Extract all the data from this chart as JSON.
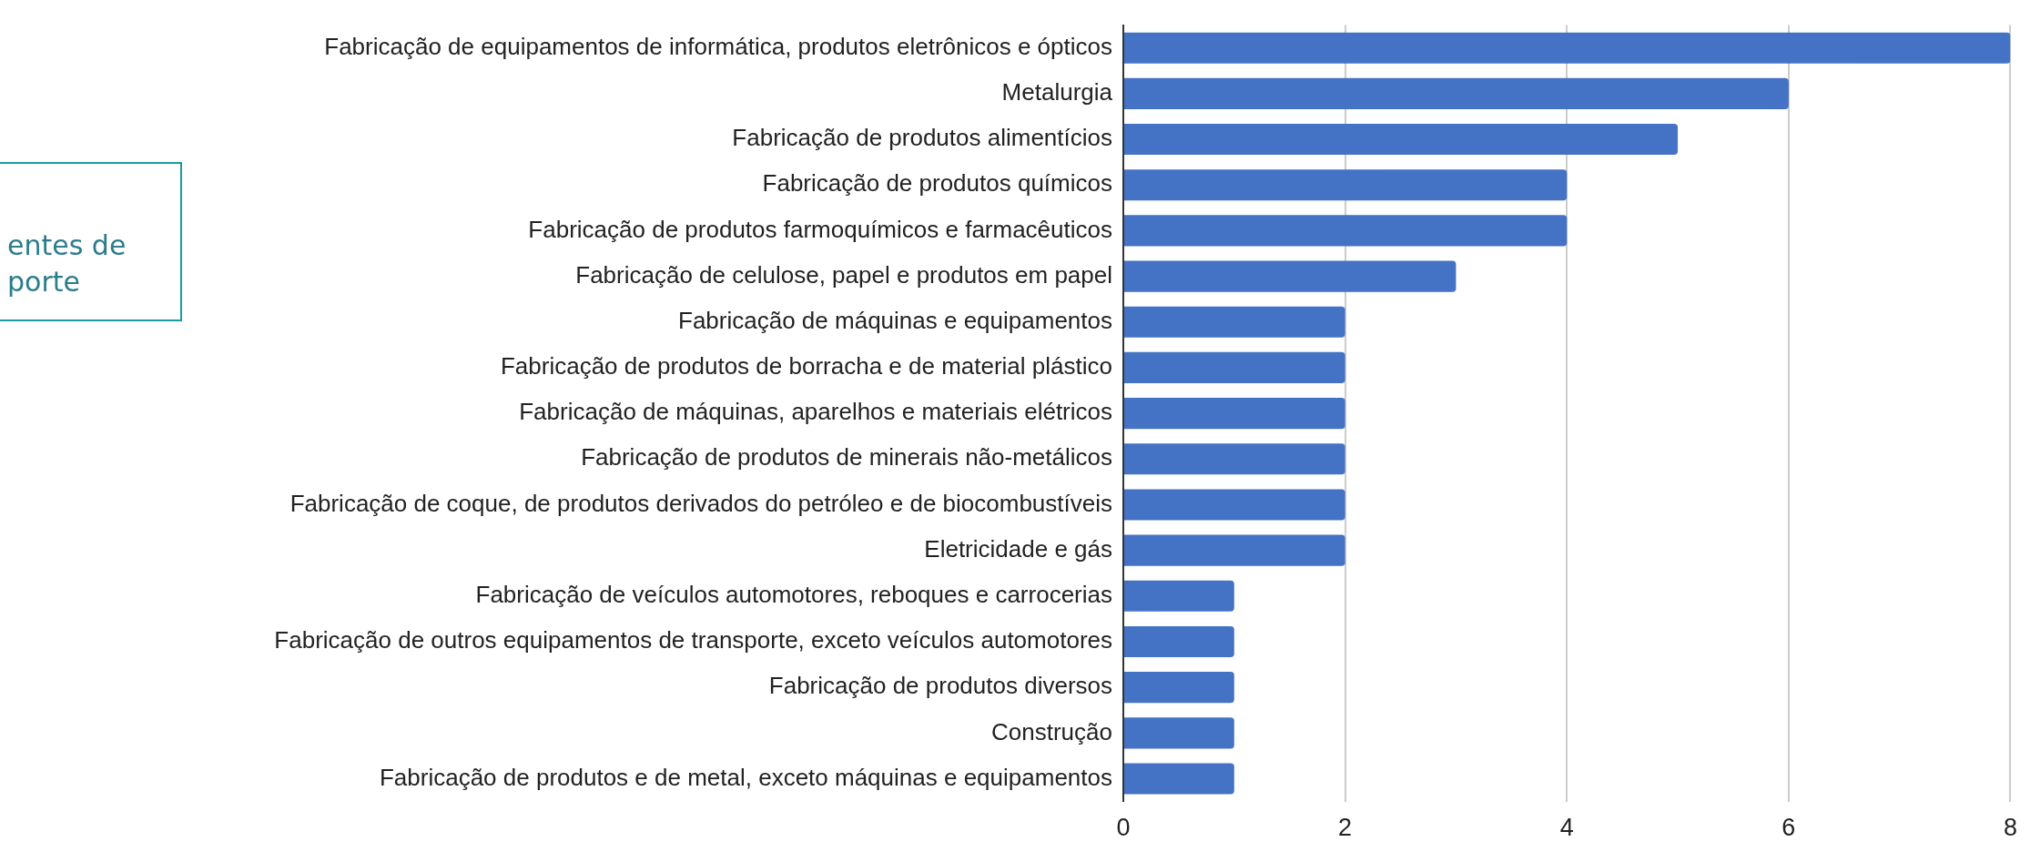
{
  "chart_data": {
    "type": "bar",
    "orientation": "horizontal",
    "categories": [
      "Fabricação de equipamentos de informática, produtos eletrônicos e ópticos",
      "Metalurgia",
      "Fabricação de produtos alimentícios",
      "Fabricação de produtos químicos",
      "Fabricação de produtos farmoquímicos e farmacêuticos",
      "Fabricação de celulose, papel e produtos em papel",
      "Fabricação de máquinas e equipamentos",
      "Fabricação de produtos de borracha e de material plástico",
      "Fabricação de máquinas, aparelhos e materiais elétricos",
      "Fabricação de produtos de minerais não-metálicos",
      "Fabricação de coque, de produtos derivados do petróleo e de biocombustíveis",
      "Eletricidade e gás",
      "Fabricação de veículos automotores, reboques e carrocerias",
      "Fabricação de outros equipamentos de transporte, exceto veículos automotores",
      "Fabricação de produtos diversos",
      "Construção",
      "Fabricação de produtos e de metal, exceto máquinas e equipamentos"
    ],
    "values": [
      8,
      6,
      5,
      4,
      4,
      3,
      2,
      2,
      2,
      2,
      2,
      2,
      1,
      1,
      1,
      1,
      1
    ],
    "color": "#4472c4",
    "xlim": [
      0,
      8
    ],
    "xticks": [
      0,
      2,
      4,
      6,
      8
    ],
    "grid": "x",
    "annotations": [
      "entes de porte"
    ]
  }
}
